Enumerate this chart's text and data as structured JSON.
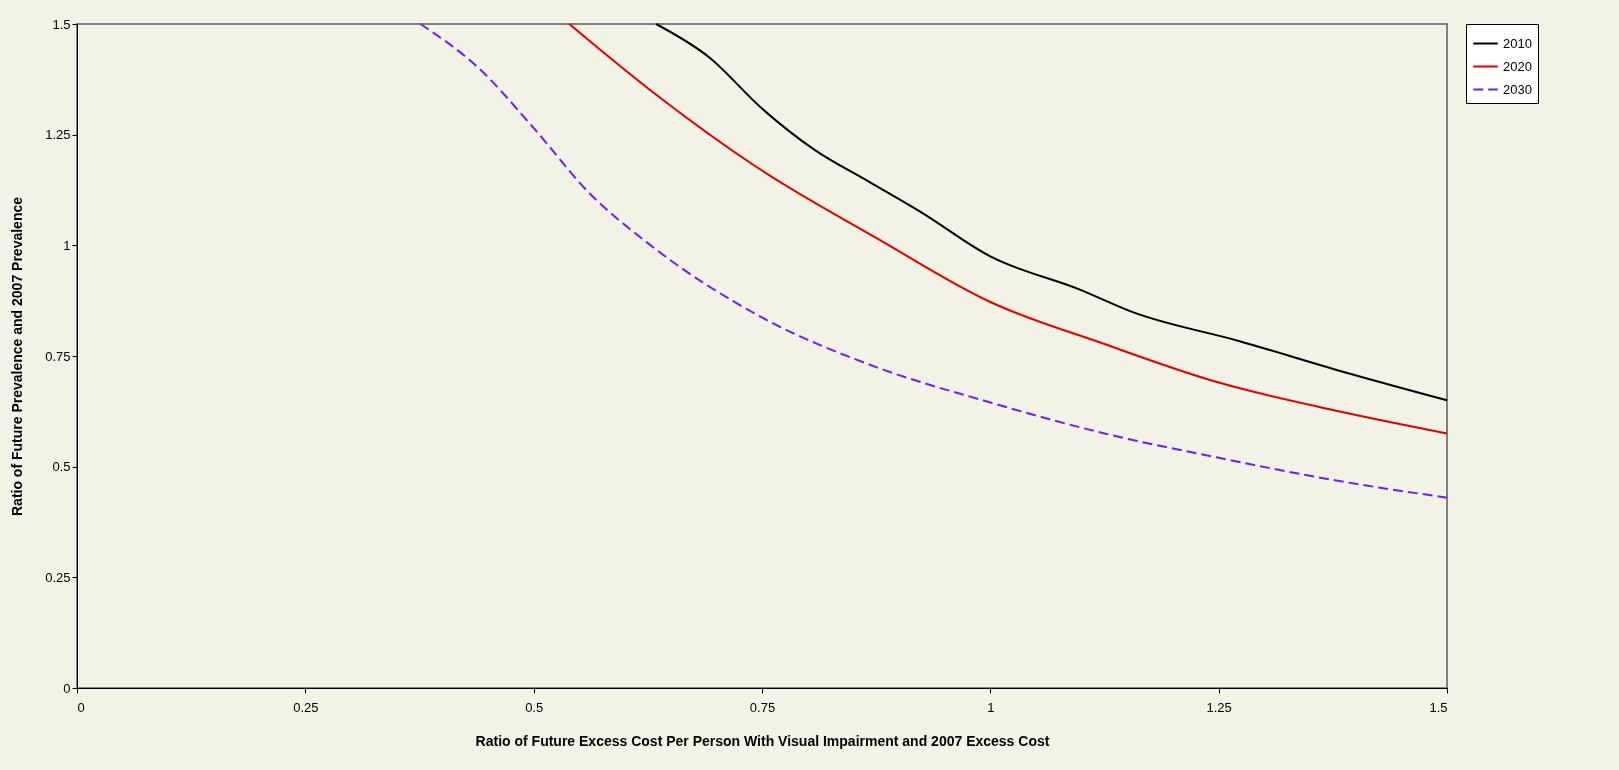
{
  "chart_data": {
    "type": "line",
    "xlabel": "Ratio of Future Excess Cost Per Person With Visual Impairment and 2007 Excess Cost",
    "ylabel": "Ratio of Future Prevalence and 2007 Prevalence",
    "xlim": [
      0,
      1.5
    ],
    "ylim": [
      0,
      1.5
    ],
    "xticks": [
      0,
      0.25,
      0.5,
      0.75,
      1,
      1.25,
      1.5
    ],
    "yticks": [
      0,
      0.25,
      0.5,
      0.75,
      1,
      1.25,
      1.5
    ],
    "grid": false,
    "legend": "right",
    "marker": "none",
    "series": [
      {
        "name": "2010",
        "color": "#000000",
        "line_style": "solid",
        "x": [
          0.634,
          0.692,
          0.75,
          0.808,
          0.866,
          0.924,
          1.0,
          1.098,
          1.156,
          1.272,
          1.387,
          1.5
        ],
        "values": [
          1.5,
          1.425,
          1.309,
          1.215,
          1.145,
          1.075,
          0.975,
          0.9,
          0.849,
          0.784,
          0.714,
          0.65
        ]
      },
      {
        "name": "2020",
        "color": "#e00000",
        "line_style": "solid",
        "x": [
          0.539,
          0.625,
          0.75,
          0.875,
          1.0,
          1.125,
          1.25,
          1.375,
          1.5
        ],
        "values": [
          1.5,
          1.355,
          1.169,
          1.017,
          0.872,
          0.777,
          0.69,
          0.628,
          0.575
        ]
      },
      {
        "name": "2030",
        "color": "#6a1fff",
        "line_style": "dashed",
        "x": [
          0.376,
          0.44,
          0.5,
          0.56,
          0.625,
          0.75,
          0.875,
          1.0,
          1.125,
          1.25,
          1.375,
          1.5
        ],
        "values": [
          1.5,
          1.4,
          1.265,
          1.12,
          1.005,
          0.837,
          0.725,
          0.645,
          0.575,
          0.52,
          0.47,
          0.43
        ]
      }
    ]
  }
}
